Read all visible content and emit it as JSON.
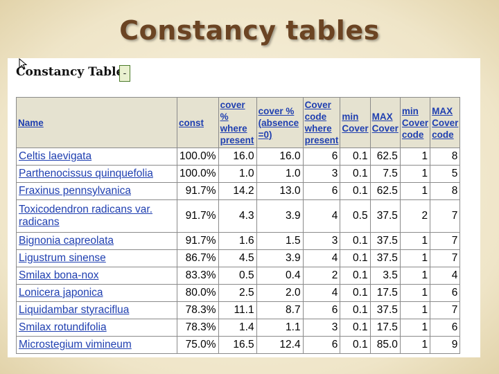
{
  "slide": {
    "title": "Constancy tables"
  },
  "page": {
    "heading": "Constancy Table",
    "toggle_label": "-"
  },
  "table": {
    "headers": [
      "Name",
      "const",
      "cover % where present",
      "cover % (absence =0)",
      "Cover code where present",
      "min Cover",
      "MAX Cover",
      "min Cover code",
      "MAX Cover code"
    ],
    "rows": [
      [
        "Celtis laevigata",
        "100.0%",
        "16.0",
        "16.0",
        "6",
        "0.1",
        "62.5",
        "1",
        "8"
      ],
      [
        "Parthenocissus quinquefolia",
        "100.0%",
        "1.0",
        "1.0",
        "3",
        "0.1",
        "7.5",
        "1",
        "5"
      ],
      [
        "Fraxinus pennsylvanica",
        "91.7%",
        "14.2",
        "13.0",
        "6",
        "0.1",
        "62.5",
        "1",
        "8"
      ],
      [
        "Toxicodendron radicans var. radicans",
        "91.7%",
        "4.3",
        "3.9",
        "4",
        "0.5",
        "37.5",
        "2",
        "7"
      ],
      [
        "Bignonia capreolata",
        "91.7%",
        "1.6",
        "1.5",
        "3",
        "0.1",
        "37.5",
        "1",
        "7"
      ],
      [
        "Ligustrum sinense",
        "86.7%",
        "4.5",
        "3.9",
        "4",
        "0.1",
        "37.5",
        "1",
        "7"
      ],
      [
        "Smilax bona-nox",
        "83.3%",
        "0.5",
        "0.4",
        "2",
        "0.1",
        "3.5",
        "1",
        "4"
      ],
      [
        "Lonicera japonica",
        "80.0%",
        "2.5",
        "2.0",
        "4",
        "0.1",
        "17.5",
        "1",
        "6"
      ],
      [
        "Liquidambar styraciflua",
        "78.3%",
        "11.1",
        "8.7",
        "6",
        "0.1",
        "37.5",
        "1",
        "7"
      ],
      [
        "Smilax rotundifolia",
        "78.3%",
        "1.4",
        "1.1",
        "3",
        "0.1",
        "17.5",
        "1",
        "6"
      ],
      [
        "Microstegium vimineum",
        "75.0%",
        "16.5",
        "12.4",
        "6",
        "0.1",
        "85.0",
        "1",
        "9"
      ]
    ]
  }
}
